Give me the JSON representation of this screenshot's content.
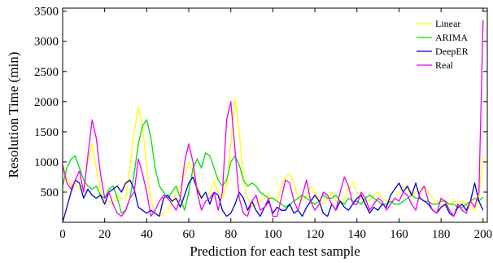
{
  "chart_data": {
    "type": "line",
    "title": "",
    "xlabel": "Prediction for each test sample",
    "ylabel": "Resolution Time (min)",
    "xlim": [
      0,
      202
    ],
    "ylim": [
      0,
      3550
    ],
    "xticks": [
      0,
      20,
      40,
      60,
      80,
      100,
      120,
      140,
      160,
      180,
      200
    ],
    "yticks": [
      500,
      1000,
      1500,
      2000,
      2500,
      3000,
      3500
    ],
    "grid": false,
    "legend_position": "top-right",
    "series": [
      {
        "name": "Linear",
        "color": "#ffff00",
        "x": [
          0,
          2,
          4,
          6,
          8,
          10,
          12,
          14,
          16,
          18,
          20,
          22,
          24,
          26,
          28,
          30,
          32,
          34,
          36,
          38,
          40,
          42,
          44,
          46,
          48,
          50,
          52,
          54,
          56,
          58,
          60,
          62,
          64,
          66,
          68,
          70,
          72,
          74,
          76,
          78,
          80,
          82,
          84,
          86,
          88,
          90,
          92,
          94,
          96,
          98,
          100,
          102,
          104,
          106,
          108,
          110,
          112,
          114,
          116,
          118,
          120,
          122,
          124,
          126,
          128,
          130,
          132,
          134,
          136,
          138,
          140,
          142,
          144,
          146,
          148,
          150,
          152,
          154,
          156,
          158,
          160,
          162,
          164,
          166,
          168,
          170,
          172,
          174,
          176,
          178,
          180,
          182,
          184,
          186,
          188,
          190,
          192,
          194,
          196,
          198,
          200
        ],
        "values": [
          950,
          750,
          600,
          650,
          550,
          600,
          1000,
          1300,
          900,
          500,
          350,
          350,
          300,
          450,
          400,
          400,
          900,
          1500,
          1900,
          1600,
          900,
          350,
          150,
          100,
          150,
          200,
          300,
          500,
          600,
          800,
          1000,
          850,
          600,
          450,
          400,
          500,
          700,
          500,
          400,
          600,
          1300,
          2050,
          1500,
          700,
          400,
          250,
          300,
          350,
          400,
          450,
          400,
          350,
          600,
          750,
          800,
          650,
          400,
          350,
          450,
          600,
          500,
          350,
          300,
          400,
          500,
          350,
          300,
          400,
          550,
          650,
          500,
          400,
          350,
          350,
          450,
          500,
          400,
          350,
          300,
          400,
          500,
          600,
          550,
          450,
          500,
          550,
          600,
          500,
          400,
          350,
          300,
          250,
          300,
          350,
          300,
          350,
          300,
          250,
          200,
          400,
          1100
        ]
      },
      {
        "name": "ARIMA",
        "color": "#00dd00",
        "x": [
          0,
          2,
          4,
          6,
          8,
          10,
          12,
          14,
          16,
          18,
          20,
          22,
          24,
          26,
          28,
          30,
          32,
          34,
          36,
          38,
          40,
          42,
          44,
          46,
          48,
          50,
          52,
          54,
          56,
          58,
          60,
          62,
          64,
          66,
          68,
          70,
          72,
          74,
          76,
          78,
          80,
          82,
          84,
          86,
          88,
          90,
          92,
          94,
          96,
          98,
          100,
          102,
          104,
          106,
          108,
          110,
          112,
          114,
          116,
          118,
          120,
          122,
          124,
          126,
          128,
          130,
          132,
          134,
          136,
          138,
          140,
          142,
          144,
          146,
          148,
          150,
          152,
          154,
          156,
          158,
          160,
          162,
          164,
          166,
          168,
          170,
          172,
          174,
          176,
          178,
          180,
          182,
          184,
          186,
          188,
          190,
          192,
          194,
          196,
          198,
          200
        ],
        "values": [
          600,
          900,
          1050,
          1100,
          900,
          700,
          600,
          550,
          600,
          450,
          400,
          550,
          600,
          400,
          150,
          200,
          400,
          800,
          1300,
          1600,
          1700,
          1400,
          900,
          600,
          500,
          400,
          500,
          600,
          400,
          200,
          500,
          900,
          1050,
          900,
          1150,
          1100,
          900,
          700,
          600,
          700,
          1000,
          1100,
          950,
          700,
          600,
          650,
          600,
          500,
          450,
          400,
          400,
          350,
          300,
          250,
          300,
          350,
          400,
          450,
          400,
          350,
          300,
          350,
          450,
          400,
          400,
          450,
          350,
          300,
          400,
          350,
          350,
          300,
          400,
          450,
          400,
          350,
          300,
          300,
          350,
          300,
          300,
          350,
          400,
          450,
          400,
          400,
          350,
          350,
          300,
          300,
          350,
          350,
          300,
          300,
          250,
          250,
          300,
          350,
          400,
          350,
          420
        ]
      },
      {
        "name": "DeepER",
        "color": "#0000cc",
        "x": [
          0,
          2,
          4,
          6,
          8,
          10,
          12,
          14,
          16,
          18,
          20,
          22,
          24,
          26,
          28,
          30,
          32,
          34,
          36,
          38,
          40,
          42,
          44,
          46,
          48,
          50,
          52,
          54,
          56,
          58,
          60,
          62,
          64,
          66,
          68,
          70,
          72,
          74,
          76,
          78,
          80,
          82,
          84,
          86,
          88,
          90,
          92,
          94,
          96,
          98,
          100,
          102,
          104,
          106,
          108,
          110,
          112,
          114,
          116,
          118,
          120,
          122,
          124,
          126,
          128,
          130,
          132,
          134,
          136,
          138,
          140,
          142,
          144,
          146,
          148,
          150,
          152,
          154,
          156,
          158,
          160,
          162,
          164,
          166,
          168,
          170,
          172,
          174,
          176,
          178,
          180,
          182,
          184,
          186,
          188,
          190,
          192,
          194,
          196,
          198,
          200
        ],
        "values": [
          0,
          250,
          500,
          700,
          650,
          400,
          550,
          450,
          400,
          450,
          300,
          500,
          550,
          600,
          500,
          650,
          700,
          550,
          250,
          200,
          150,
          200,
          150,
          100,
          400,
          450,
          350,
          400,
          250,
          450,
          650,
          750,
          550,
          400,
          500,
          300,
          500,
          450,
          200,
          100,
          150,
          300,
          500,
          400,
          200,
          350,
          200,
          100,
          250,
          350,
          150,
          250,
          200,
          200,
          300,
          150,
          200,
          100,
          250,
          350,
          450,
          350,
          150,
          100,
          300,
          200,
          350,
          250,
          200,
          300,
          400,
          450,
          300,
          150,
          250,
          200,
          300,
          250,
          450,
          550,
          650,
          500,
          600,
          450,
          650,
          400,
          350,
          300,
          200,
          150,
          250,
          300,
          150,
          100,
          250,
          300,
          200,
          350,
          650,
          350,
          200
        ]
      },
      {
        "name": "Real",
        "color": "#ee00ee",
        "x": [
          0,
          2,
          4,
          6,
          8,
          10,
          12,
          14,
          16,
          18,
          20,
          22,
          24,
          26,
          28,
          30,
          32,
          34,
          36,
          38,
          40,
          42,
          44,
          46,
          48,
          50,
          52,
          54,
          56,
          58,
          60,
          62,
          64,
          66,
          68,
          70,
          72,
          74,
          76,
          78,
          80,
          82,
          84,
          86,
          88,
          90,
          92,
          94,
          96,
          98,
          100,
          102,
          104,
          106,
          108,
          110,
          112,
          114,
          116,
          118,
          120,
          122,
          124,
          126,
          128,
          130,
          132,
          134,
          136,
          138,
          140,
          142,
          144,
          146,
          148,
          150,
          152,
          154,
          156,
          158,
          160,
          162,
          164,
          166,
          168,
          170,
          172,
          174,
          176,
          178,
          180,
          182,
          184,
          186,
          188,
          190,
          192,
          194,
          196,
          198,
          200
        ],
        "values": [
          950,
          650,
          550,
          700,
          850,
          500,
          1100,
          1700,
          1400,
          800,
          400,
          500,
          300,
          150,
          100,
          200,
          400,
          500,
          1050,
          800,
          500,
          100,
          200,
          350,
          450,
          400,
          300,
          200,
          400,
          1000,
          1300,
          1000,
          500,
          200,
          350,
          400,
          500,
          200,
          500,
          1700,
          2000,
          1200,
          400,
          150,
          100,
          350,
          450,
          200,
          250,
          400,
          100,
          100,
          400,
          700,
          650,
          350,
          200,
          450,
          700,
          350,
          200,
          300,
          500,
          450,
          300,
          200,
          500,
          750,
          600,
          300,
          300,
          500,
          400,
          200,
          300,
          400,
          350,
          200,
          300,
          400,
          350,
          500,
          450,
          300,
          200,
          500,
          600,
          350,
          200,
          150,
          400,
          350,
          200,
          100,
          300,
          200,
          150,
          350,
          250,
          500,
          3350
        ]
      }
    ]
  }
}
